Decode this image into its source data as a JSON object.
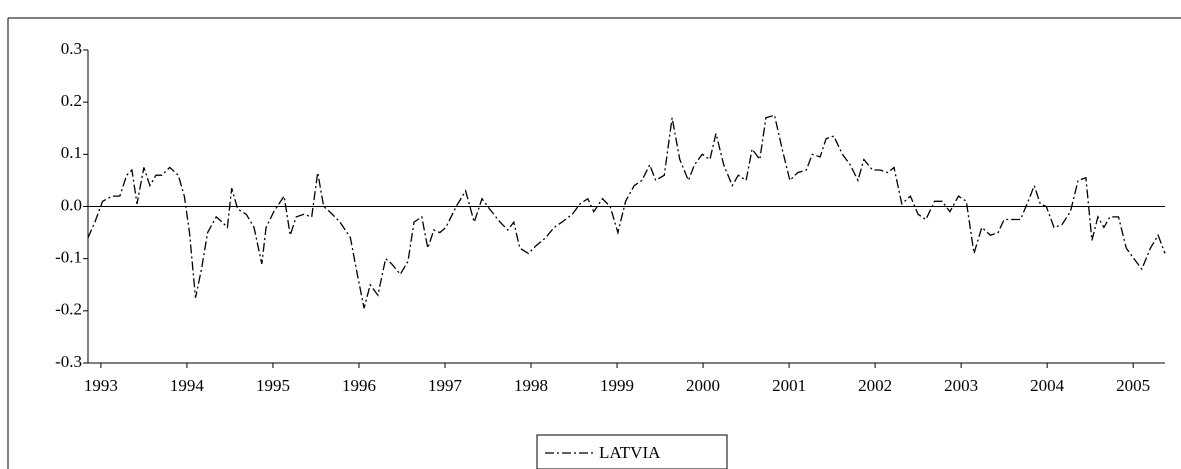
{
  "chart_data": {
    "type": "line",
    "x": [
      1992.85,
      1992.93,
      1993.02,
      1993.13,
      1993.22,
      1993.3,
      1993.36,
      1993.42,
      1993.5,
      1993.57,
      1993.64,
      1993.71,
      1993.8,
      1993.9,
      1993.97,
      1994.03,
      1994.1,
      1994.17,
      1994.24,
      1994.34,
      1994.41,
      1994.47,
      1994.52,
      1994.59,
      1994.69,
      1994.78,
      1994.87,
      1994.92,
      1995.01,
      1995.13,
      1995.2,
      1995.27,
      1995.36,
      1995.45,
      1995.52,
      1995.59,
      1995.66,
      1995.78,
      1995.9,
      1995.98,
      1996.06,
      1996.13,
      1996.22,
      1996.31,
      1996.38,
      1996.48,
      1996.57,
      1996.64,
      1996.73,
      1996.8,
      1996.87,
      1996.94,
      1997.01,
      1997.13,
      1997.24,
      1997.34,
      1997.43,
      1997.52,
      1997.64,
      1997.73,
      1997.8,
      1997.87,
      1997.97,
      1998.06,
      1998.17,
      1998.27,
      1998.36,
      1998.48,
      1998.57,
      1998.66,
      1998.73,
      1998.83,
      1998.92,
      1999.01,
      1999.1,
      1999.2,
      1999.29,
      1999.38,
      1999.45,
      1999.55,
      1999.64,
      1999.73,
      1999.83,
      1999.9,
      1999.99,
      2000.08,
      2000.15,
      2000.24,
      2000.34,
      2000.41,
      2000.5,
      2000.57,
      2000.66,
      2000.73,
      2000.83,
      2000.92,
      2001.01,
      2001.1,
      2001.2,
      2001.27,
      2001.36,
      2001.43,
      2001.52,
      2001.62,
      2001.71,
      2001.8,
      2001.87,
      2001.97,
      2002.06,
      2002.15,
      2002.22,
      2002.31,
      2002.41,
      2002.5,
      2002.59,
      2002.69,
      2002.78,
      2002.87,
      2002.97,
      2003.06,
      2003.15,
      2003.24,
      2003.34,
      2003.43,
      2003.5,
      2003.59,
      2003.69,
      2003.78,
      2003.85,
      2003.92,
      2003.99,
      2004.08,
      2004.17,
      2004.27,
      2004.36,
      2004.45,
      2004.52,
      2004.59,
      2004.66,
      2004.73,
      2004.83,
      2004.92,
      2005.01,
      2005.1,
      2005.2,
      2005.29,
      2005.37
    ],
    "series": [
      {
        "name": "LATVIA",
        "color": "#000000",
        "values": [
          -0.06,
          -0.03,
          0.01,
          0.02,
          0.02,
          0.06,
          0.07,
          0.005,
          0.075,
          0.04,
          0.06,
          0.06,
          0.075,
          0.06,
          0.02,
          -0.05,
          -0.175,
          -0.12,
          -0.05,
          -0.02,
          -0.03,
          -0.04,
          0.035,
          -0.005,
          -0.015,
          -0.04,
          -0.11,
          -0.04,
          -0.01,
          0.02,
          -0.055,
          -0.02,
          -0.015,
          -0.02,
          0.065,
          0.0,
          -0.01,
          -0.03,
          -0.06,
          -0.13,
          -0.195,
          -0.15,
          -0.17,
          -0.1,
          -0.11,
          -0.13,
          -0.105,
          -0.03,
          -0.02,
          -0.08,
          -0.045,
          -0.05,
          -0.04,
          0.0,
          0.03,
          -0.03,
          0.015,
          -0.005,
          -0.03,
          -0.045,
          -0.03,
          -0.08,
          -0.09,
          -0.075,
          -0.06,
          -0.04,
          -0.03,
          -0.015,
          0.005,
          0.015,
          -0.01,
          0.015,
          0.0,
          -0.05,
          0.01,
          0.04,
          0.05,
          0.08,
          0.05,
          0.06,
          0.17,
          0.09,
          0.05,
          0.08,
          0.1,
          0.09,
          0.14,
          0.08,
          0.04,
          0.06,
          0.05,
          0.11,
          0.09,
          0.17,
          0.175,
          0.11,
          0.05,
          0.065,
          0.07,
          0.1,
          0.095,
          0.13,
          0.135,
          0.1,
          0.08,
          0.05,
          0.09,
          0.07,
          0.07,
          0.065,
          0.075,
          0.005,
          0.02,
          -0.015,
          -0.025,
          0.01,
          0.01,
          -0.01,
          0.02,
          0.01,
          -0.09,
          -0.04,
          -0.055,
          -0.05,
          -0.025,
          -0.025,
          -0.025,
          0.01,
          0.04,
          0.005,
          0.0,
          -0.04,
          -0.035,
          -0.01,
          0.05,
          0.055,
          -0.065,
          -0.02,
          -0.04,
          -0.02,
          -0.02,
          -0.08,
          -0.1,
          -0.12,
          -0.08,
          -0.055,
          -0.09
        ]
      }
    ],
    "xlim": [
      1992.85,
      2005.37
    ],
    "xticks": [
      1993,
      1994,
      1995,
      1996,
      1997,
      1998,
      1999,
      2000,
      2001,
      2002,
      2003,
      2004,
      2005
    ],
    "ylim": [
      -0.3,
      0.3
    ],
    "yticks": [
      {
        "value": 0.3,
        "label": "0.3"
      },
      {
        "value": 0.2,
        "label": "0.2"
      },
      {
        "value": 0.1,
        "label": "0.1"
      },
      {
        "value": 0,
        "label": "0.0"
      },
      {
        "value": -0.1,
        "label": "-0.1"
      },
      {
        "value": -0.2,
        "label": "-0.2"
      },
      {
        "value": -0.3,
        "label": "-0.3"
      }
    ],
    "zero_line": true,
    "legend": "bottom"
  }
}
